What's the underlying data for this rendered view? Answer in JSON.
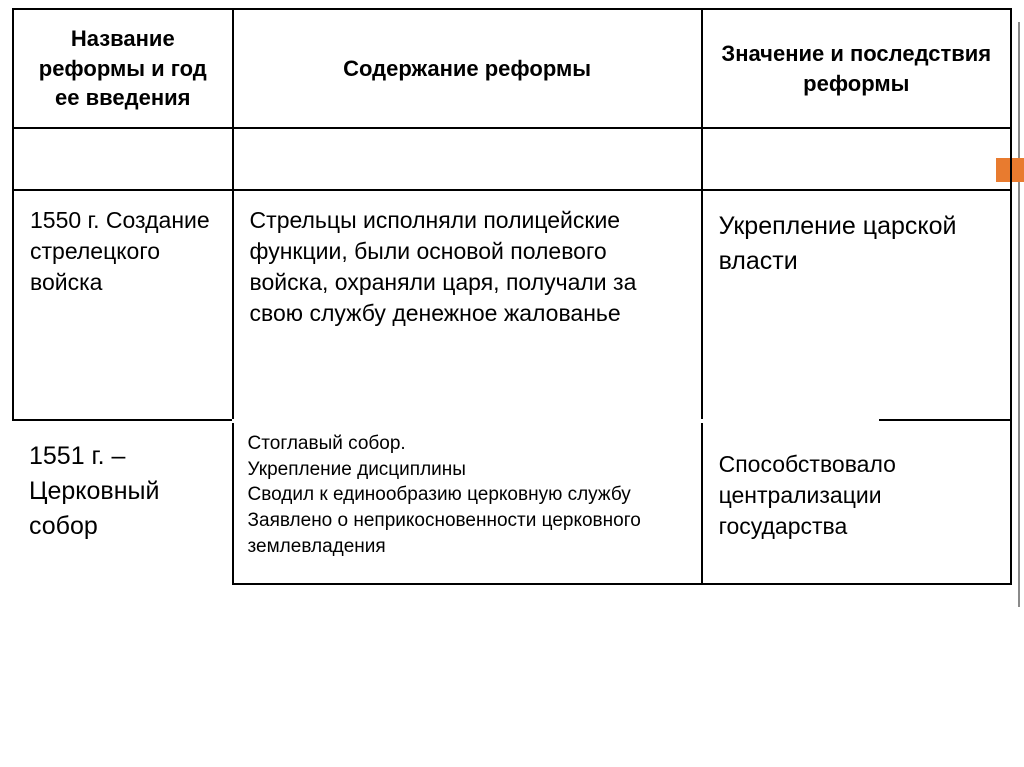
{
  "table": {
    "columns": [
      "Название реформы и год ее введения",
      "Содержание реформы",
      "Значение и последствия реформы"
    ],
    "rows": [
      {
        "name": "",
        "content": "",
        "significance": ""
      },
      {
        "name": "1550 г. Создание стрелецкого войска",
        "content": "Стрельцы исполняли полицейские функции, были основой полевого войска, охраняли царя, получали за свою службу денежное жалованье",
        "significance": "Укрепление царской власти"
      },
      {
        "name": "1551 г. – Церковный собор",
        "content": "Стоглавый собор.\nУкрепление дисциплины\nСводил к единообразию церковную службу\nЗаявлено о неприкосновенности церковного землевладения",
        "significance": "Способствовало централизации государства"
      }
    ],
    "column_widths": [
      "22%",
      "47%",
      "31%"
    ],
    "border_color": "#000000",
    "background_color": "#ffffff",
    "accent_color": "#e87b2f",
    "header_fontsize": 22,
    "body_fontsize": 22
  }
}
